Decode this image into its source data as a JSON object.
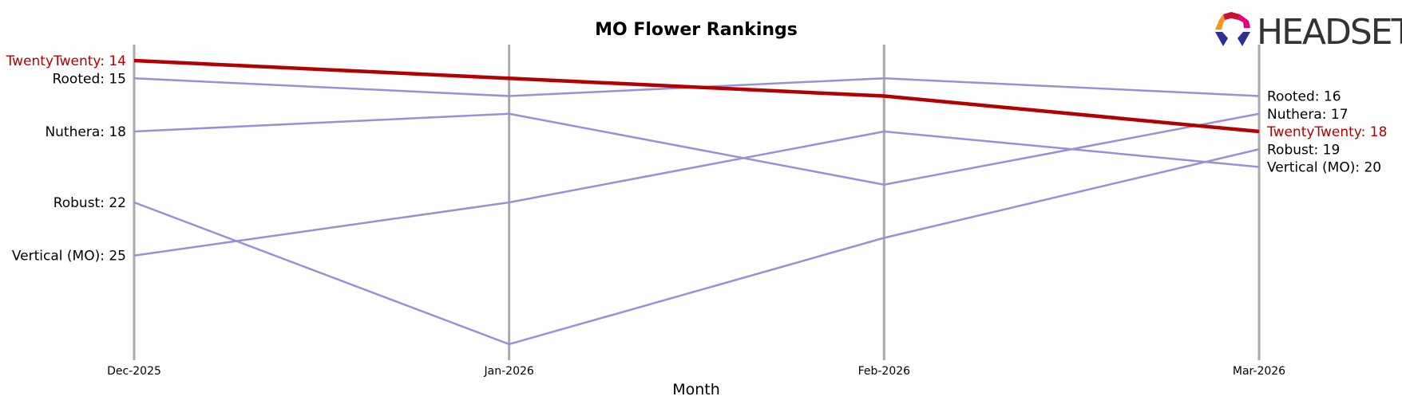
{
  "brand": {
    "logo_text": "HEADSET",
    "logo_colors": [
      "#c9122e",
      "#e4007c",
      "#f7941d",
      "#2e3192"
    ]
  },
  "chart_data": {
    "type": "line",
    "title": "MO Flower Rankings",
    "xlabel": "Month",
    "ylabel": "",
    "categories": [
      "Dec-2025",
      "Jan-2026",
      "Feb-2026",
      "Mar-2026"
    ],
    "y_inverted": true,
    "ylim": [
      13.1,
      30.9
    ],
    "grid": {
      "vertical": true,
      "horizontal": false
    },
    "legend": "none",
    "highlight_color": "#b30000",
    "other_color": "#9a8fd8",
    "series": [
      {
        "name": "TwentyTwenty",
        "values": [
          14,
          15,
          16,
          18
        ],
        "highlight": true,
        "start_label": "TwentyTwenty: 14",
        "end_label": "TwentyTwenty: 18"
      },
      {
        "name": "Rooted",
        "values": [
          15,
          16,
          15,
          16
        ],
        "highlight": false,
        "start_label": "Rooted: 15",
        "end_label": "Rooted: 16"
      },
      {
        "name": "Nuthera",
        "values": [
          18,
          17,
          21,
          17
        ],
        "highlight": false,
        "start_label": "Nuthera: 18",
        "end_label": "Nuthera: 17"
      },
      {
        "name": "Robust",
        "values": [
          22,
          30,
          24,
          19
        ],
        "highlight": false,
        "start_label": "Robust: 22",
        "end_label": "Robust: 19"
      },
      {
        "name": "Vertical (MO)",
        "values": [
          25,
          22,
          18,
          20
        ],
        "highlight": false,
        "start_label": "Vertical (MO): 25",
        "end_label": "Vertical (MO): 20"
      }
    ]
  }
}
